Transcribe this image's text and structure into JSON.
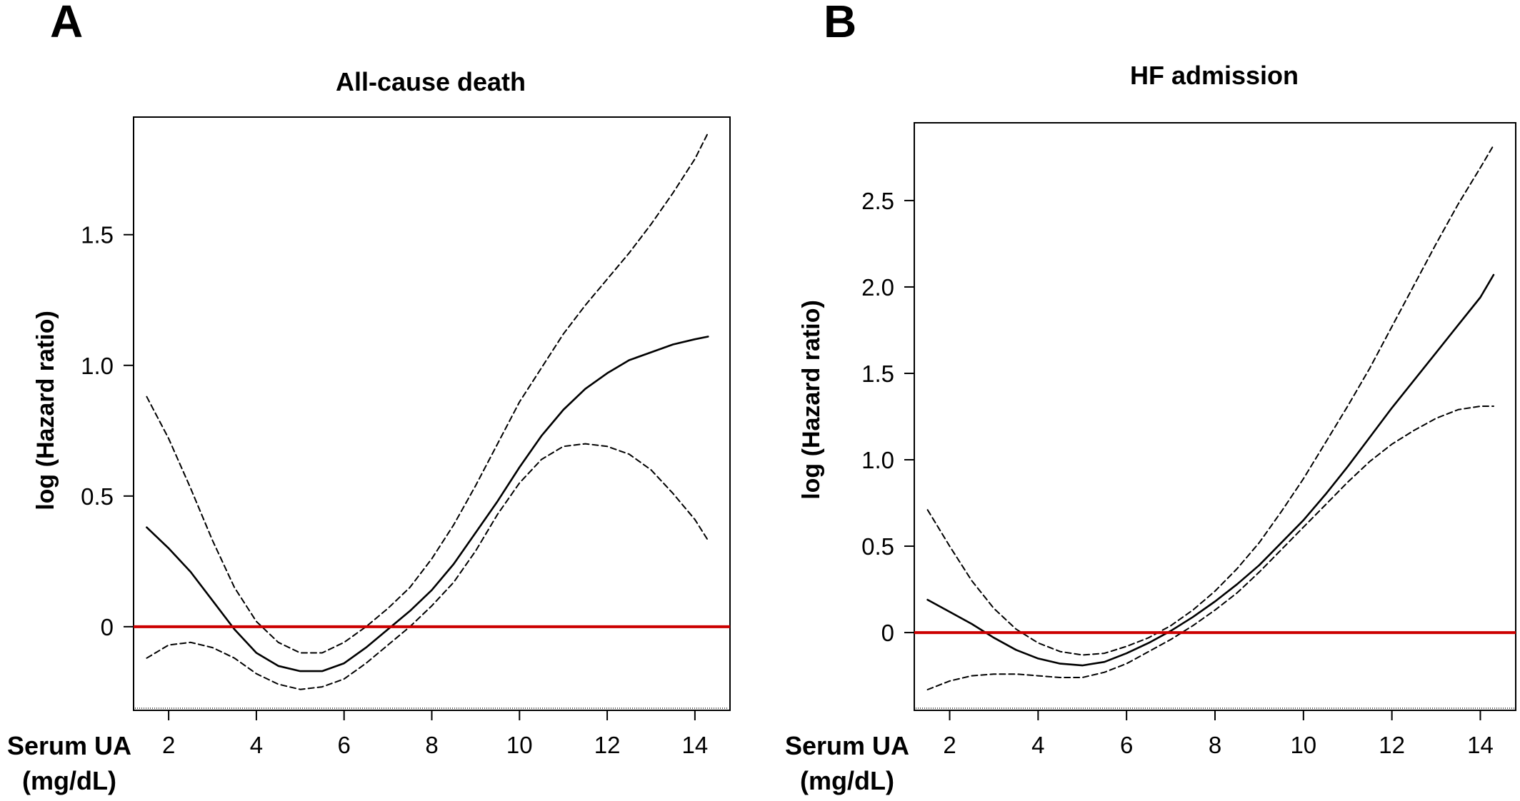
{
  "chart_data": [
    {
      "type": "line",
      "panel_label": "A",
      "title": "All-cause death",
      "xlabel_line1": "Serum UA",
      "xlabel_line2": "(mg/dL)",
      "ylabel": "log (Hazard ratio)",
      "xlim": [
        1.2,
        14.8
      ],
      "ylim": [
        -0.32,
        1.95
      ],
      "xticks": [
        2,
        4,
        6,
        8,
        10,
        12,
        14
      ],
      "yticks": [
        0,
        0.5,
        1.0,
        1.5
      ],
      "ytick_labels": [
        "0",
        "0.5",
        "1.0",
        "1.5"
      ],
      "reference_line": {
        "y": 0,
        "color": "#cc0000"
      },
      "series": [
        {
          "style": "solid",
          "x": [
            1.5,
            2,
            2.5,
            3,
            3.5,
            4,
            4.5,
            5,
            5.5,
            6,
            6.5,
            7,
            7.5,
            8,
            8.5,
            9,
            9.5,
            10,
            10.5,
            11,
            11.5,
            12,
            12.5,
            13,
            13.5,
            14,
            14.3
          ],
          "y": [
            0.38,
            0.3,
            0.21,
            0.1,
            -0.01,
            -0.1,
            -0.15,
            -0.17,
            -0.17,
            -0.14,
            -0.08,
            -0.01,
            0.06,
            0.14,
            0.24,
            0.36,
            0.48,
            0.61,
            0.73,
            0.83,
            0.91,
            0.97,
            1.02,
            1.05,
            1.08,
            1.1,
            1.11
          ]
        },
        {
          "style": "dashed",
          "x": [
            1.5,
            2,
            2.5,
            3,
            3.5,
            4,
            4.5,
            5,
            5.5,
            6,
            6.5,
            7,
            7.5,
            8,
            8.5,
            9,
            9.5,
            10,
            10.5,
            11,
            11.5,
            12,
            12.5,
            13,
            13.5,
            14,
            14.3
          ],
          "y": [
            0.88,
            0.72,
            0.53,
            0.33,
            0.15,
            0.02,
            -0.06,
            -0.1,
            -0.1,
            -0.06,
            0.0,
            0.07,
            0.15,
            0.26,
            0.39,
            0.54,
            0.7,
            0.86,
            0.99,
            1.12,
            1.23,
            1.33,
            1.43,
            1.54,
            1.66,
            1.79,
            1.89
          ]
        },
        {
          "style": "dashed",
          "x": [
            1.5,
            2,
            2.5,
            3,
            3.5,
            4,
            4.5,
            5,
            5.5,
            6,
            6.5,
            7,
            7.5,
            8,
            8.5,
            9,
            9.5,
            10,
            10.5,
            11,
            11.5,
            12,
            12.5,
            13,
            13.5,
            14,
            14.3
          ],
          "y": [
            -0.12,
            -0.07,
            -0.06,
            -0.08,
            -0.12,
            -0.18,
            -0.22,
            -0.24,
            -0.23,
            -0.2,
            -0.14,
            -0.07,
            0.0,
            0.08,
            0.17,
            0.29,
            0.43,
            0.55,
            0.64,
            0.69,
            0.7,
            0.69,
            0.66,
            0.6,
            0.51,
            0.41,
            0.33
          ]
        }
      ]
    },
    {
      "type": "line",
      "panel_label": "B",
      "title": "HF admission",
      "xlabel_line1": "Serum UA",
      "xlabel_line2": "(mg/dL)",
      "ylabel": "log (Hazard ratio)",
      "xlim": [
        1.2,
        14.8
      ],
      "ylim": [
        -0.45,
        2.95
      ],
      "xticks": [
        2,
        4,
        6,
        8,
        10,
        12,
        14
      ],
      "yticks": [
        0,
        0.5,
        1.0,
        1.5,
        2.0,
        2.5
      ],
      "ytick_labels": [
        "0",
        "0.5",
        "1.0",
        "1.5",
        "2.0",
        "2.5"
      ],
      "reference_line": {
        "y": 0,
        "color": "#cc0000"
      },
      "series": [
        {
          "style": "solid",
          "x": [
            1.5,
            2,
            2.5,
            3,
            3.5,
            4,
            4.5,
            5,
            5.5,
            6,
            6.5,
            7,
            7.5,
            8,
            8.5,
            9,
            9.5,
            10,
            10.5,
            11,
            11.5,
            12,
            12.5,
            13,
            13.5,
            14,
            14.3
          ],
          "y": [
            0.19,
            0.12,
            0.05,
            -0.03,
            -0.1,
            -0.15,
            -0.18,
            -0.19,
            -0.17,
            -0.12,
            -0.06,
            0.01,
            0.09,
            0.18,
            0.28,
            0.39,
            0.52,
            0.65,
            0.8,
            0.96,
            1.13,
            1.3,
            1.46,
            1.62,
            1.78,
            1.94,
            2.07
          ]
        },
        {
          "style": "dashed",
          "x": [
            1.5,
            2,
            2.5,
            3,
            3.5,
            4,
            4.5,
            5,
            5.5,
            6,
            6.5,
            7,
            7.5,
            8,
            8.5,
            9,
            9.5,
            10,
            10.5,
            11,
            11.5,
            12,
            12.5,
            13,
            13.5,
            14,
            14.3
          ],
          "y": [
            0.71,
            0.5,
            0.3,
            0.14,
            0.02,
            -0.06,
            -0.11,
            -0.13,
            -0.12,
            -0.08,
            -0.03,
            0.04,
            0.13,
            0.24,
            0.37,
            0.52,
            0.7,
            0.89,
            1.1,
            1.31,
            1.53,
            1.77,
            2.01,
            2.25,
            2.48,
            2.69,
            2.82
          ]
        },
        {
          "style": "dashed",
          "x": [
            1.5,
            2,
            2.5,
            3,
            3.5,
            4,
            4.5,
            5,
            5.5,
            6,
            6.5,
            7,
            7.5,
            8,
            8.5,
            9,
            9.5,
            10,
            10.5,
            11,
            11.5,
            12,
            12.5,
            13,
            13.5,
            14,
            14.3
          ],
          "y": [
            -0.33,
            -0.28,
            -0.25,
            -0.24,
            -0.24,
            -0.25,
            -0.26,
            -0.26,
            -0.23,
            -0.18,
            -0.11,
            -0.04,
            0.04,
            0.13,
            0.23,
            0.35,
            0.48,
            0.61,
            0.74,
            0.87,
            0.99,
            1.09,
            1.17,
            1.24,
            1.29,
            1.31,
            1.31
          ]
        }
      ]
    }
  ]
}
